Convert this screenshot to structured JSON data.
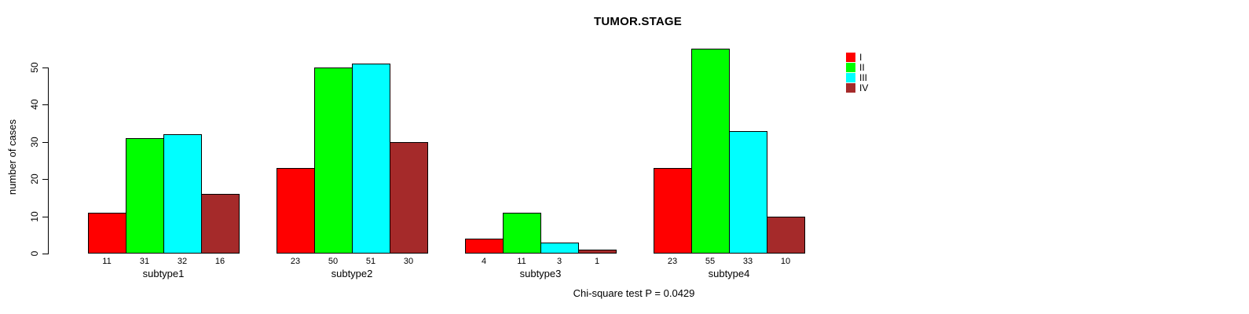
{
  "chart_data": {
    "type": "bar",
    "title": "TUMOR.STAGE",
    "xlabel": "",
    "ylabel": "number of cases",
    "annotation": "Chi-square test P = 0.0429",
    "categories": [
      "subtype1",
      "subtype2",
      "subtype3",
      "subtype4"
    ],
    "series": [
      {
        "name": "I",
        "color": "#FF0000",
        "values": [
          11,
          23,
          4,
          23
        ]
      },
      {
        "name": "II",
        "color": "#00FF00",
        "values": [
          31,
          50,
          11,
          55
        ]
      },
      {
        "name": "III",
        "color": "#00FFFF",
        "values": [
          32,
          51,
          3,
          33
        ]
      },
      {
        "name": "IV",
        "color": "#A52A2A",
        "values": [
          16,
          30,
          1,
          10
        ]
      }
    ],
    "bar_value_labels": [
      [
        11,
        31,
        32,
        16
      ],
      [
        23,
        50,
        51,
        30
      ],
      [
        4,
        11,
        3,
        1
      ],
      [
        23,
        55,
        33,
        10
      ]
    ],
    "yticks": [
      0,
      10,
      20,
      30,
      40,
      50
    ],
    "ylim": [
      0,
      55
    ],
    "grid": false,
    "legend_position": "top-right",
    "legend_labels": [
      "I",
      "II",
      "III",
      "IV"
    ]
  }
}
